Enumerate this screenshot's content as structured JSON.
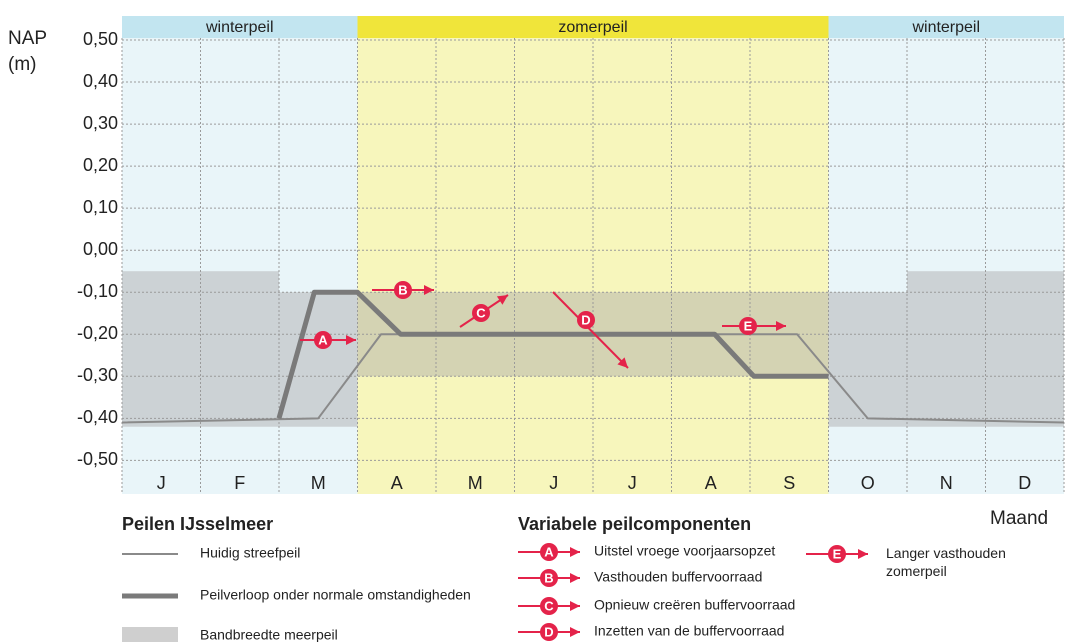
{
  "chart_data": {
    "type": "line",
    "y_label": "NAP (m)",
    "x_label": "Maand",
    "categories": [
      "J",
      "F",
      "M",
      "A",
      "M",
      "J",
      "J",
      "A",
      "S",
      "O",
      "N",
      "D"
    ],
    "xlim": [
      0,
      12
    ],
    "ylim": [
      -0.58,
      0.55
    ],
    "yticks": [
      {
        "value": 0.5,
        "label": "0,50"
      },
      {
        "value": 0.4,
        "label": "0,40"
      },
      {
        "value": 0.3,
        "label": "0,30"
      },
      {
        "value": 0.2,
        "label": "0,20"
      },
      {
        "value": 0.1,
        "label": "0,10"
      },
      {
        "value": 0,
        "label": "0,00"
      },
      {
        "value": -0.1,
        "label": "-0,10"
      },
      {
        "value": -0.2,
        "label": "-0,20"
      },
      {
        "value": -0.3,
        "label": "-0,30"
      },
      {
        "value": -0.4,
        "label": "-0,40"
      },
      {
        "value": -0.5,
        "label": "-0,50"
      }
    ],
    "grid": true,
    "seasons": [
      {
        "label": "winterpeil",
        "start": 0,
        "end": 3,
        "color": "#e9f5f9",
        "header_color": "#c2e5f0"
      },
      {
        "label": "zomerpeil",
        "start": 3,
        "end": 9,
        "color": "#f7f6bc",
        "header_color": "#f0e53a"
      },
      {
        "label": "winterpeil",
        "start": 9,
        "end": 12,
        "color": "#e9f5f9",
        "header_color": "#c2e5f0"
      }
    ],
    "legend_title": "Peilen IJsselmeer",
    "series": [
      {
        "name": "Huidig streefpeil",
        "color": "#8a8a8a",
        "x": [
          0,
          2.5,
          3.3,
          8.6,
          9.5,
          12
        ],
        "values": [
          -0.41,
          -0.4,
          -0.2,
          -0.2,
          -0.4,
          -0.41
        ]
      },
      {
        "name": "Peilverloop onder normale omstandigheden",
        "color": "#7a7a7a",
        "x": [
          2,
          2.45,
          3,
          3.55,
          7.55,
          8.05,
          9
        ],
        "values": [
          -0.4,
          -0.1,
          -0.1,
          -0.2,
          -0.2,
          -0.3,
          -0.3
        ]
      },
      {
        "name": "Bandbreedte meerpeil",
        "color": "#a8a8a8",
        "upper": [
          -0.05,
          -0.05,
          -0.1,
          -0.1,
          -0.1,
          -0.1,
          -0.1,
          -0.1,
          -0.1,
          -0.1,
          -0.05,
          -0.05
        ],
        "lower": [
          -0.42,
          -0.42,
          -0.42,
          -0.3,
          -0.3,
          -0.3,
          -0.3,
          -0.3,
          -0.3,
          -0.42,
          -0.42,
          -0.42
        ]
      }
    ],
    "annotations_title": "Variabele peilcomponenten",
    "annotations": [
      {
        "letter": "A",
        "text": "Uitstel vroege voorjaarsopzet"
      },
      {
        "letter": "B",
        "text": "Vasthouden buffervoorraad"
      },
      {
        "letter": "C",
        "text": "Opnieuw creëren buffervoorraad"
      },
      {
        "letter": "D",
        "text": "Inzetten van de buffervoorraad"
      },
      {
        "letter": "E",
        "text": "Langer vasthouden zomerpeil"
      }
    ],
    "annotation_color": "#e4234a"
  }
}
